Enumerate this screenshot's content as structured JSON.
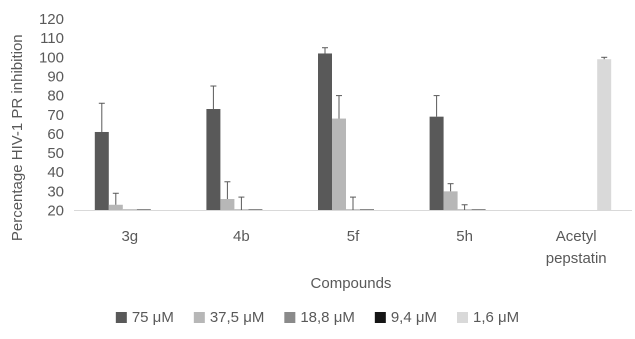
{
  "chart_data": {
    "type": "bar",
    "title": "",
    "xlabel": "Compounds",
    "ylabel": "Percentage HIV-1 PR inhibition",
    "ylim": [
      20,
      120
    ],
    "yticks": [
      20,
      30,
      40,
      50,
      60,
      70,
      80,
      90,
      100,
      110,
      120
    ],
    "grid": false,
    "legend_position": "bottom",
    "categories": [
      {
        "lines": [
          "3g"
        ]
      },
      {
        "lines": [
          "4b"
        ]
      },
      {
        "lines": [
          "5f"
        ]
      },
      {
        "lines": [
          "5h"
        ]
      },
      {
        "lines": [
          "Acetyl",
          "pepstatin"
        ]
      }
    ],
    "series": [
      {
        "name": "75 μM",
        "color": "#595959",
        "values": [
          61,
          73,
          102,
          69,
          null
        ],
        "errors": [
          15,
          12,
          3,
          11,
          null
        ]
      },
      {
        "name": "37,5 μM",
        "color": "#b7b7b7",
        "values": [
          23,
          26,
          68,
          30,
          null
        ],
        "errors": [
          6,
          9,
          12,
          4,
          null
        ]
      },
      {
        "name": "18,8 μM",
        "color": "#8a8a8a",
        "values": [
          20,
          20,
          20,
          20,
          null
        ],
        "errors": [
          0,
          7,
          7,
          3,
          null
        ]
      },
      {
        "name": "9,4 μM",
        "color": "#151515",
        "values": [
          20,
          20,
          20,
          20,
          null
        ],
        "errors": [
          0,
          0,
          0,
          0,
          null
        ]
      },
      {
        "name": "1,6 μM",
        "color": "#d9d9d9",
        "values": [
          null,
          null,
          null,
          null,
          99
        ],
        "errors": [
          null,
          null,
          null,
          null,
          1
        ]
      }
    ]
  }
}
